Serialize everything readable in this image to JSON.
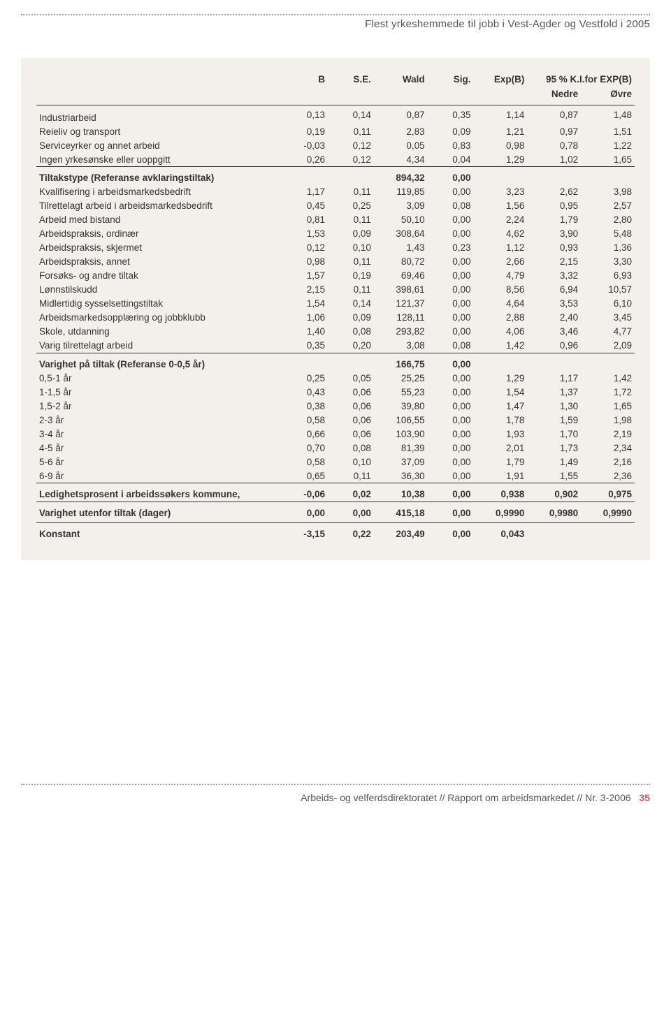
{
  "header": {
    "title": "Flest yrkeshemmede til jobb i Vest-Agder og Vestfold i 2005"
  },
  "columns": {
    "B": "B",
    "SE": "S.E.",
    "Wald": "Wald",
    "Sig": "Sig.",
    "Exp": "Exp(B)",
    "KI": "95 % K.I.for EXP(B)",
    "Nedre": "Nedre",
    "Ovre": "Øvre"
  },
  "rows_top": [
    {
      "label": "Industriarbeid",
      "v": [
        "0,13",
        "0,14",
        "0,87",
        "0,35",
        "1,14",
        "0,87",
        "1,48"
      ]
    },
    {
      "label": "Reieliv og transport",
      "v": [
        "0,19",
        "0,11",
        "2,83",
        "0,09",
        "1,21",
        "0,97",
        "1,51"
      ]
    },
    {
      "label": "Serviceyrker og annet arbeid",
      "v": [
        "-0,03",
        "0,12",
        "0,05",
        "0,83",
        "0,98",
        "0,78",
        "1,22"
      ]
    },
    {
      "label": "Ingen yrkesønske eller uoppgitt",
      "v": [
        "0,26",
        "0,12",
        "4,34",
        "0,04",
        "1,29",
        "1,02",
        "1,65"
      ]
    }
  ],
  "tiltak_head": {
    "label": "Tiltakstype (Referanse avklaringstiltak)",
    "wald": "894,32",
    "sig": "0,00"
  },
  "rows_tiltak": [
    {
      "label": "Kvalifisering i arbeidsmarkedsbedrift",
      "v": [
        "1,17",
        "0,11",
        "119,85",
        "0,00",
        "3,23",
        "2,62",
        "3,98"
      ]
    },
    {
      "label": "Tilrettelagt arbeid i arbeidsmarkedsbedrift",
      "v": [
        "0,45",
        "0,25",
        "3,09",
        "0,08",
        "1,56",
        "0,95",
        "2,57"
      ]
    },
    {
      "label": "Arbeid med bistand",
      "v": [
        "0,81",
        "0,11",
        "50,10",
        "0,00",
        "2,24",
        "1,79",
        "2,80"
      ]
    },
    {
      "label": "Arbeidspraksis, ordinær",
      "v": [
        "1,53",
        "0,09",
        "308,64",
        "0,00",
        "4,62",
        "3,90",
        "5,48"
      ]
    },
    {
      "label": "Arbeidspraksis, skjermet",
      "v": [
        "0,12",
        "0,10",
        "1,43",
        "0,23",
        "1,12",
        "0,93",
        "1,36"
      ]
    },
    {
      "label": "Arbeidspraksis, annet",
      "v": [
        "0,98",
        "0,11",
        "80,72",
        "0,00",
        "2,66",
        "2,15",
        "3,30"
      ]
    },
    {
      "label": "Forsøks- og andre tiltak",
      "v": [
        "1,57",
        "0,19",
        "69,46",
        "0,00",
        "4,79",
        "3,32",
        "6,93"
      ]
    },
    {
      "label": "Lønnstilskudd",
      "v": [
        "2,15",
        "0,11",
        "398,61",
        "0,00",
        "8,56",
        "6,94",
        "10,57"
      ]
    },
    {
      "label": "Midlertidig sysselsettingstiltak",
      "v": [
        "1,54",
        "0,14",
        "121,37",
        "0,00",
        "4,64",
        "3,53",
        "6,10"
      ]
    },
    {
      "label": "Arbeidsmarkedsopplæring og jobbklubb",
      "v": [
        "1,06",
        "0,09",
        "128,11",
        "0,00",
        "2,88",
        "2,40",
        "3,45"
      ]
    },
    {
      "label": "Skole, utdanning",
      "v": [
        "1,40",
        "0,08",
        "293,82",
        "0,00",
        "4,06",
        "3,46",
        "4,77"
      ]
    },
    {
      "label": "Varig tilrettelagt arbeid",
      "v": [
        "0,35",
        "0,20",
        "3,08",
        "0,08",
        "1,42",
        "0,96",
        "2,09"
      ]
    }
  ],
  "varighet_head": {
    "label": "Varighet på tiltak (Referanse 0-0,5 år)",
    "wald": "166,75",
    "sig": "0,00"
  },
  "rows_varighet": [
    {
      "label": "0,5-1 år",
      "v": [
        "0,25",
        "0,05",
        "25,25",
        "0,00",
        "1,29",
        "1,17",
        "1,42"
      ]
    },
    {
      "label": "1-1,5 år",
      "v": [
        "0,43",
        "0,06",
        "55,23",
        "0,00",
        "1,54",
        "1,37",
        "1,72"
      ]
    },
    {
      "label": "1,5-2 år",
      "v": [
        "0,38",
        "0,06",
        "39,80",
        "0,00",
        "1,47",
        "1,30",
        "1,65"
      ]
    },
    {
      "label": "2-3 år",
      "v": [
        "0,58",
        "0,06",
        "106,55",
        "0,00",
        "1,78",
        "1,59",
        "1,98"
      ]
    },
    {
      "label": "3-4 år",
      "v": [
        "0,66",
        "0,06",
        "103,90",
        "0,00",
        "1,93",
        "1,70",
        "2,19"
      ]
    },
    {
      "label": "4-5 år",
      "v": [
        "0,70",
        "0,08",
        "81,39",
        "0,00",
        "2,01",
        "1,73",
        "2,34"
      ]
    },
    {
      "label": "5-6 år",
      "v": [
        "0,58",
        "0,10",
        "37,09",
        "0,00",
        "1,79",
        "1,49",
        "2,16"
      ]
    },
    {
      "label": "6-9 år",
      "v": [
        "0,65",
        "0,11",
        "36,30",
        "0,00",
        "1,91",
        "1,55",
        "2,36"
      ]
    }
  ],
  "bottom_rows": [
    {
      "label": "Ledighetsprosent i arbeidssøkers kommune,",
      "v": [
        "-0,06",
        "0,02",
        "10,38",
        "0,00",
        "0,938",
        "0,902",
        "0,975"
      ]
    },
    {
      "label": "Varighet utenfor tiltak (dager)",
      "v": [
        "0,00",
        "0,00",
        "415,18",
        "0,00",
        "0,9990",
        "0,9980",
        "0,9990"
      ]
    },
    {
      "label": "Konstant",
      "v": [
        "-3,15",
        "0,22",
        "203,49",
        "0,00",
        "0,043",
        "",
        ""
      ]
    }
  ],
  "footer": {
    "text": "Arbeids- og velferdsdirektoratet // Rapport om arbeidsmarkedet // Nr. 3-2006",
    "page": "35"
  }
}
